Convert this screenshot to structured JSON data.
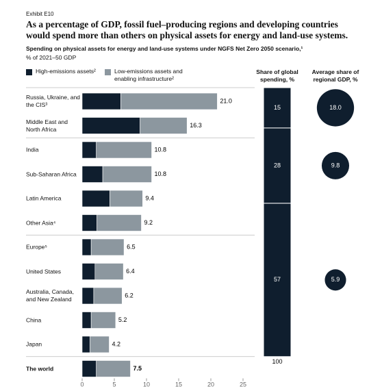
{
  "chart_data": {
    "type": "bar",
    "orientation": "horizontal",
    "stacked": true,
    "exhibit": "Exhibit E10",
    "title": "As a percentage of GDP, fossil fuel–producing regions and developing countries would spend more than others on physical assets for energy and land-use systems.",
    "subtitle": "Spending on physical assets for energy and land-use systems under NGFS Net Zero 2050 scenario,¹",
    "unit_note": "% of 2021–50 GDP",
    "categories": [
      "Russia, Ukraine, and the CIS³",
      "Middle East and North Africa",
      "India",
      "Sub-Saharan Africa",
      "Latin America",
      "Other Asia⁴",
      "Europe⁵",
      "United States",
      "Australia, Canada, and New Zealand",
      "China",
      "Japan",
      "The world"
    ],
    "series": [
      {
        "name": "High-emissions assets²",
        "color": "#0f1e2e",
        "values": [
          6.0,
          9.0,
          2.2,
          3.2,
          4.3,
          2.3,
          1.4,
          2.0,
          1.8,
          1.4,
          1.2,
          2.2
        ]
      },
      {
        "name": "Low-emissions assets and enabling infrastructure²",
        "color": "#8c979f",
        "values": [
          15.0,
          7.3,
          8.6,
          7.6,
          5.1,
          6.9,
          5.1,
          4.4,
          4.4,
          3.8,
          3.0,
          5.3
        ]
      }
    ],
    "total_labels": [
      "21.0",
      "16.3",
      "10.8",
      "10.8",
      "9.4",
      "9.2",
      "6.5",
      "6.4",
      "6.2",
      "5.2",
      "4.2",
      "7.5"
    ],
    "xlim": [
      0,
      25
    ],
    "xticks": [
      0,
      5,
      10,
      15,
      20,
      25
    ],
    "share": {
      "title": "Share of global spending, %",
      "values": [
        15,
        28,
        57
      ],
      "total": 100,
      "color": "#0f1e2e"
    },
    "gdp_share": {
      "title": "Average share of regional GDP, %",
      "values": [
        18.0,
        9.8,
        5.9
      ],
      "value_labels": [
        "18.0",
        "9.8",
        "5.9"
      ],
      "color": "#0f1e2e"
    }
  }
}
